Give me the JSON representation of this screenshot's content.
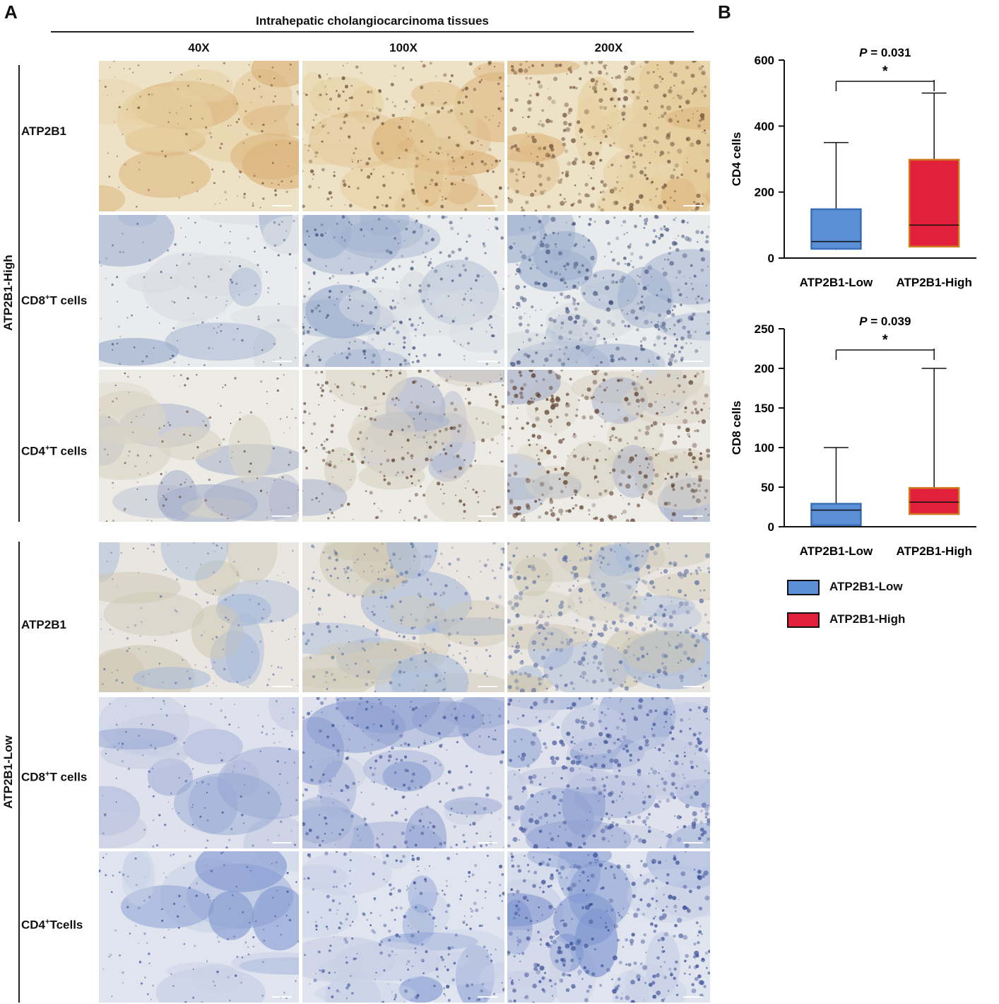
{
  "panel_a": {
    "letter": "A",
    "title": "Intrahepatic cholangiocarcinoma tissues",
    "magnifications": [
      "40X",
      "100X",
      "200X"
    ],
    "groups": [
      {
        "label": "ATP2B1-High",
        "rows": [
          {
            "label": "ATP2B1",
            "sup": "",
            "rest": ""
          },
          {
            "label": "CD8",
            "sup": "+",
            "rest": "T cells"
          },
          {
            "label": "CD4",
            "sup": "+",
            "rest": "T cells"
          }
        ]
      },
      {
        "label": "ATP2B1-Low",
        "rows": [
          {
            "label": "ATP2B1",
            "sup": "",
            "rest": ""
          },
          {
            "label": "CD8",
            "sup": "+",
            "rest": "T cells"
          },
          {
            "label": "CD4",
            "sup": "+",
            "rest": "Tcells"
          }
        ]
      }
    ]
  },
  "panel_b": {
    "letter": "B",
    "legend": [
      {
        "label": "ATP2B1-Low",
        "color": "#5b8fd6"
      },
      {
        "label": "ATP2B1-High",
        "color": "#e2203c"
      }
    ]
  },
  "chart_data": [
    {
      "type": "boxplot",
      "ylabel": "CD4 cells",
      "ylim": [
        0,
        600
      ],
      "yticks": [
        0,
        200,
        400,
        600
      ],
      "categories": [
        "ATP2B1-Low",
        "ATP2B1-High"
      ],
      "boxes": [
        {
          "name": "ATP2B1-Low",
          "min": 25,
          "q1": 28,
          "median": 50,
          "q3": 148,
          "max": 350,
          "color": "#5b8fd6"
        },
        {
          "name": "ATP2B1-High",
          "min": 35,
          "q1": 35,
          "median": 100,
          "q3": 298,
          "max": 500,
          "color": "#e2203c"
        }
      ],
      "p_label": "P",
      "p_value": " = 0.031",
      "significance": "*"
    },
    {
      "type": "boxplot",
      "ylabel": "CD8 cells",
      "ylim": [
        0,
        250
      ],
      "yticks": [
        0,
        50,
        100,
        150,
        200,
        250
      ],
      "categories": [
        "ATP2B1-Low",
        "ATP2B1-High"
      ],
      "boxes": [
        {
          "name": "ATP2B1-Low",
          "min": 2,
          "q1": 2,
          "median": 21,
          "q3": 29,
          "max": 100,
          "color": "#5b8fd6"
        },
        {
          "name": "ATP2B1-High",
          "min": 16,
          "q1": 16,
          "median": 31,
          "q3": 49,
          "max": 200,
          "color": "#e2203c"
        }
      ],
      "p_label": "P",
      "p_value": " = 0.039",
      "significance": "*"
    }
  ]
}
